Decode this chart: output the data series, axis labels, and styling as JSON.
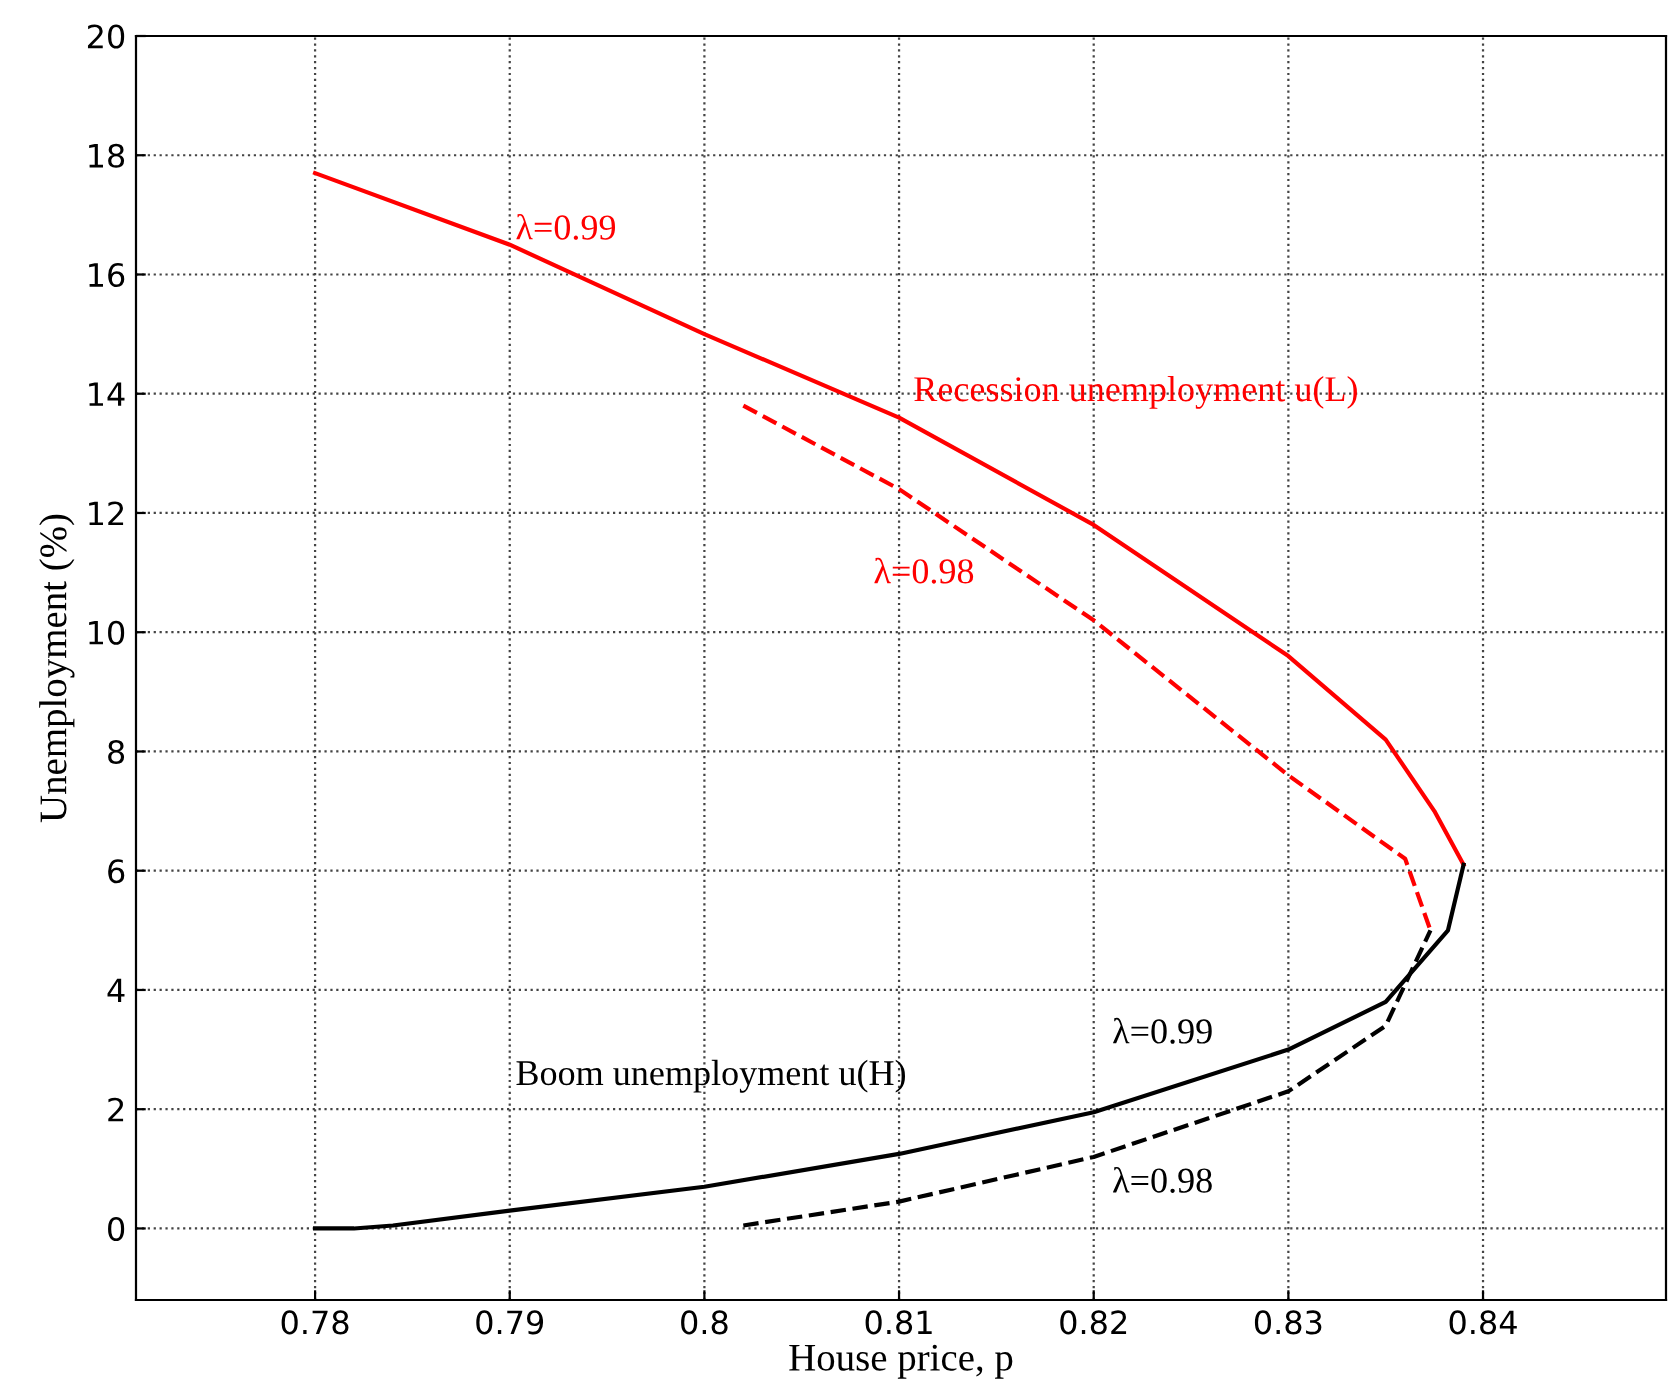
{
  "chart_data": {
    "type": "line",
    "xlabel": "House price, p",
    "ylabel": "Unemployment (%)",
    "xlim": [
      0.7708,
      0.8494
    ],
    "ylim": [
      -1.2,
      20
    ],
    "xticks": [
      0.78,
      0.79,
      0.8,
      0.81,
      0.82,
      0.83,
      0.84
    ],
    "yticks": [
      0,
      2,
      4,
      6,
      8,
      10,
      12,
      14,
      16,
      18,
      20
    ],
    "grid": true,
    "marker": "none",
    "series": [
      {
        "name": "λ=0.99",
        "color": "#ff0000",
        "line_style": "solid",
        "x": [
          0.78,
          0.79,
          0.8,
          0.81,
          0.82,
          0.83,
          0.835,
          0.8375,
          0.839
        ],
        "values": [
          17.7,
          16.5,
          15.0,
          13.6,
          11.8,
          9.6,
          8.2,
          7.0,
          6.1
        ]
      },
      {
        "name": "λ=0.98",
        "color": "#ff0000",
        "line_style": "dashed",
        "x": [
          0.802,
          0.81,
          0.82,
          0.83,
          0.836,
          0.8373
        ],
        "values": [
          13.8,
          12.4,
          10.2,
          7.6,
          6.2,
          5.0
        ]
      },
      {
        "name": "λ=0.99",
        "color": "#000000",
        "line_style": "solid",
        "x": [
          0.78,
          0.782,
          0.784,
          0.79,
          0.8,
          0.81,
          0.82,
          0.83,
          0.835,
          0.8382,
          0.839
        ],
        "values": [
          0,
          0,
          0.05,
          0.3,
          0.7,
          1.25,
          1.95,
          3.0,
          3.8,
          5.0,
          6.1
        ]
      },
      {
        "name": "λ=0.98",
        "color": "#000000",
        "line_style": "dashed",
        "x": [
          0.802,
          0.81,
          0.82,
          0.83,
          0.835,
          0.8373
        ],
        "values": [
          0.05,
          0.45,
          1.2,
          2.3,
          3.4,
          5.0
        ]
      }
    ],
    "annotations": [
      "Recession unemployment u(L)",
      "Boom unemployment u(H)"
    ]
  }
}
